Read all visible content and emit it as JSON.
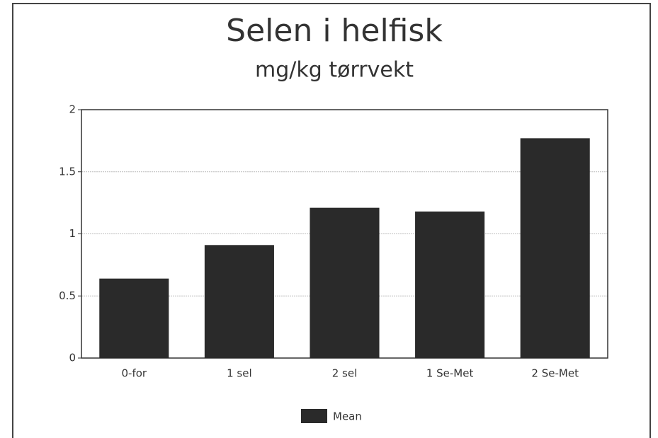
{
  "chart_data": {
    "type": "bar",
    "title": "Selen i helfisk",
    "subtitle": "mg/kg tørrvekt",
    "categories": [
      "0-for",
      "1 sel",
      "2 sel",
      "1 Se-Met",
      "2 Se-Met"
    ],
    "series": [
      {
        "name": "Mean",
        "color": "#2a2a2a",
        "values": [
          0.64,
          0.91,
          1.21,
          1.18,
          1.77
        ]
      }
    ],
    "ylim": [
      0,
      2
    ],
    "yticks": [
      0,
      0.5,
      1,
      1.5,
      2
    ],
    "grid": true,
    "legend": "bottom"
  }
}
